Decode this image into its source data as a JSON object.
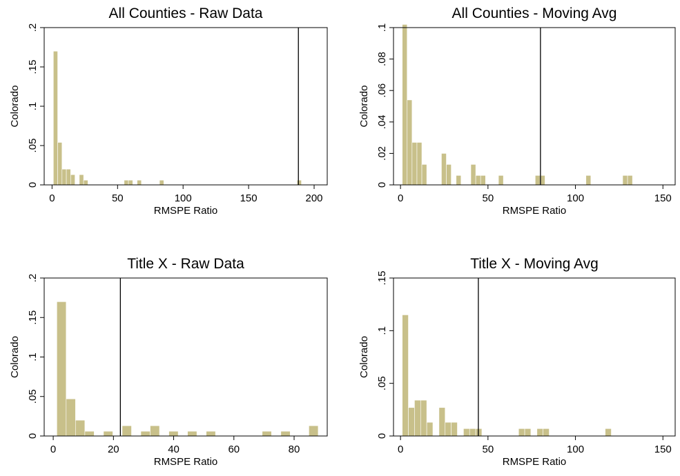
{
  "chart_data": [
    {
      "type": "bar",
      "title": "All Counties - Raw Data",
      "xlabel": "RMSPE Ratio",
      "ylabel": "Colorado",
      "xlim": [
        -6,
        210
      ],
      "ylim": [
        0,
        0.2
      ],
      "xticks": [
        0,
        50,
        100,
        150,
        200
      ],
      "xtick_labels": [
        "0",
        "50",
        "100",
        "150",
        "200"
      ],
      "yticks": [
        0,
        0.05,
        0.1,
        0.15,
        0.2
      ],
      "ytick_labels": [
        "0",
        ".05",
        ".1",
        ".15",
        ".2"
      ],
      "bin_width": 3.3,
      "bins": [
        {
          "x": 1,
          "y": 0.17
        },
        {
          "x": 4.3,
          "y": 0.054
        },
        {
          "x": 7.6,
          "y": 0.02
        },
        {
          "x": 10.9,
          "y": 0.02
        },
        {
          "x": 14.2,
          "y": 0.013
        },
        {
          "x": 20.8,
          "y": 0.013
        },
        {
          "x": 24.1,
          "y": 0.006
        },
        {
          "x": 55,
          "y": 0.006
        },
        {
          "x": 58.3,
          "y": 0.006
        },
        {
          "x": 64.9,
          "y": 0.006
        },
        {
          "x": 82,
          "y": 0.006
        },
        {
          "x": 187,
          "y": 0.006
        }
      ],
      "vline": 188
    },
    {
      "type": "bar",
      "title": "All Counties - Moving Avg",
      "xlabel": "RMSPE Ratio",
      "ylabel": "Colorado",
      "xlim": [
        -4,
        157
      ],
      "ylim": [
        0,
        0.1
      ],
      "xticks": [
        0,
        50,
        100,
        150
      ],
      "xtick_labels": [
        "0",
        "50",
        "100",
        "150"
      ],
      "yticks": [
        0,
        0.02,
        0.04,
        0.06,
        0.08,
        0.1
      ],
      "ytick_labels": [
        "0",
        ".02",
        ".04",
        ".06",
        ".08",
        ".1"
      ],
      "bin_width": 2.8,
      "bins": [
        {
          "x": 1,
          "y": 0.102
        },
        {
          "x": 3.8,
          "y": 0.054
        },
        {
          "x": 6.6,
          "y": 0.027
        },
        {
          "x": 9.4,
          "y": 0.027
        },
        {
          "x": 12.2,
          "y": 0.013
        },
        {
          "x": 23.4,
          "y": 0.02
        },
        {
          "x": 26.2,
          "y": 0.013
        },
        {
          "x": 31.8,
          "y": 0.006
        },
        {
          "x": 40.2,
          "y": 0.013
        },
        {
          "x": 43,
          "y": 0.006
        },
        {
          "x": 45.8,
          "y": 0.006
        },
        {
          "x": 56,
          "y": 0.006
        },
        {
          "x": 77,
          "y": 0.006
        },
        {
          "x": 79.8,
          "y": 0.006
        },
        {
          "x": 106,
          "y": 0.006
        },
        {
          "x": 127,
          "y": 0.006
        },
        {
          "x": 129.8,
          "y": 0.006
        }
      ],
      "vline": 80
    },
    {
      "type": "bar",
      "title": "Title X - Raw Data",
      "xlabel": "RMSPE Ratio",
      "ylabel": "Colorado",
      "xlim": [
        -3,
        91
      ],
      "ylim": [
        0,
        0.2
      ],
      "xticks": [
        0,
        20,
        40,
        60,
        80
      ],
      "xtick_labels": [
        "0",
        "20",
        "40",
        "60",
        "80"
      ],
      "yticks": [
        0,
        0.05,
        0.1,
        0.15,
        0.2
      ],
      "ytick_labels": [
        "0",
        ".05",
        ".1",
        ".15",
        ".2"
      ],
      "bin_width": 3.1,
      "bins": [
        {
          "x": 1.2,
          "y": 0.17
        },
        {
          "x": 4.3,
          "y": 0.047
        },
        {
          "x": 7.4,
          "y": 0.02
        },
        {
          "x": 10.5,
          "y": 0.006
        },
        {
          "x": 16.7,
          "y": 0.006
        },
        {
          "x": 22.9,
          "y": 0.013
        },
        {
          "x": 29.1,
          "y": 0.006
        },
        {
          "x": 32.2,
          "y": 0.013
        },
        {
          "x": 38.4,
          "y": 0.006
        },
        {
          "x": 44.6,
          "y": 0.006
        },
        {
          "x": 50.8,
          "y": 0.006
        },
        {
          "x": 69.4,
          "y": 0.006
        },
        {
          "x": 75.6,
          "y": 0.006
        },
        {
          "x": 84.9,
          "y": 0.013
        }
      ],
      "vline": 22.3
    },
    {
      "type": "bar",
      "title": "Title X - Moving Avg",
      "xlabel": "RMSPE Ratio",
      "ylabel": "Colorado",
      "xlim": [
        -4,
        157
      ],
      "ylim": [
        0,
        0.15
      ],
      "xticks": [
        0,
        50,
        100,
        150
      ],
      "xtick_labels": [
        "0",
        "50",
        "100",
        "150"
      ],
      "yticks": [
        0,
        0.05,
        0.1,
        0.15
      ],
      "ytick_labels": [
        "0",
        ".05",
        ".1",
        ".15"
      ],
      "bin_width": 3.5,
      "bins": [
        {
          "x": 1,
          "y": 0.115
        },
        {
          "x": 4.5,
          "y": 0.027
        },
        {
          "x": 8,
          "y": 0.034
        },
        {
          "x": 11.5,
          "y": 0.034
        },
        {
          "x": 15,
          "y": 0.013
        },
        {
          "x": 22,
          "y": 0.027
        },
        {
          "x": 25.5,
          "y": 0.013
        },
        {
          "x": 29,
          "y": 0.013
        },
        {
          "x": 36,
          "y": 0.007
        },
        {
          "x": 39.5,
          "y": 0.007
        },
        {
          "x": 43,
          "y": 0.007
        },
        {
          "x": 67.5,
          "y": 0.007
        },
        {
          "x": 71,
          "y": 0.007
        },
        {
          "x": 78,
          "y": 0.007
        },
        {
          "x": 81.5,
          "y": 0.007
        },
        {
          "x": 117,
          "y": 0.007
        }
      ],
      "vline": 44.5
    }
  ],
  "colors": {
    "bar_fill": "#c8c08a",
    "line": "#000000",
    "background": "#ffffff"
  }
}
